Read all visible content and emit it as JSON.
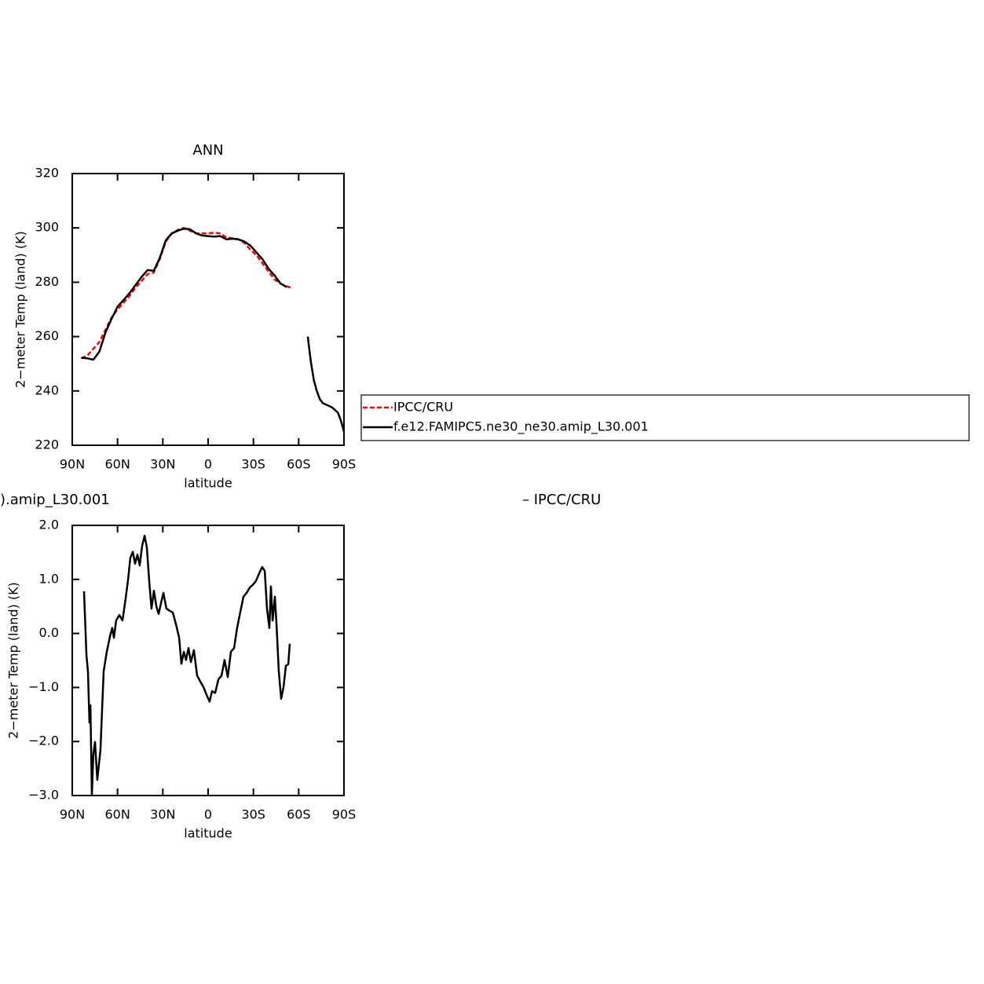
{
  "chart_data": [
    {
      "type": "line",
      "title": "ANN",
      "xlabel": "latitude",
      "ylabel": "2−meter Temp (land) (K)",
      "xlim": [
        90,
        -90
      ],
      "xticks": [
        {
          "value": 90,
          "label": "90N"
        },
        {
          "value": 60,
          "label": "60N"
        },
        {
          "value": 30,
          "label": "30N"
        },
        0,
        {
          "value": -30,
          "label": "30S"
        },
        {
          "value": -60,
          "label": "60S"
        },
        {
          "value": -90,
          "label": "90S"
        }
      ],
      "ylim": [
        220,
        320
      ],
      "yticks": [
        220,
        240,
        260,
        280,
        300,
        320
      ],
      "legend": "right",
      "x": [
        84,
        80,
        76,
        72,
        68,
        64,
        60,
        56,
        52,
        48,
        44,
        40,
        36,
        32,
        28,
        24,
        20,
        16,
        12,
        8,
        4,
        0,
        -4,
        -8,
        -12,
        -16,
        -20,
        -24,
        -28,
        -32,
        -36,
        -40,
        -44,
        -48,
        -52,
        -56,
        -60,
        -64,
        -66,
        -68,
        -70,
        -72,
        -74,
        -76,
        -78,
        -80,
        -82,
        -84,
        -86,
        -88,
        -90
      ],
      "series": [
        {
          "name": "IPCC/CRU",
          "color": "#ff0000",
          "dash": true,
          "values": [
            252,
            253,
            255.5,
            258,
            262.5,
            267,
            270,
            272.5,
            275,
            278,
            280.5,
            283,
            283.5,
            288.5,
            295,
            298,
            299.3,
            300,
            299,
            298,
            298,
            298,
            298.2,
            298,
            296.5,
            296.2,
            295.8,
            294.5,
            292,
            290,
            287,
            284,
            281,
            279.5,
            278.5,
            277.8,
            null,
            null,
            null,
            null,
            null,
            null,
            null,
            null,
            null,
            null,
            null,
            null,
            null,
            null,
            null
          ]
        },
        {
          "name": "f.e12.FAMIPC5.ne30_ne30.amip_L30.001",
          "color": "#000000",
          "dash": false,
          "values": [
            252.2,
            252,
            251.5,
            254.5,
            261.5,
            266.5,
            271,
            273.5,
            276,
            279,
            282,
            284.5,
            284.2,
            289,
            295.5,
            298,
            299,
            299.7,
            299.5,
            298,
            297.2,
            297,
            296.8,
            297,
            295.8,
            296,
            295.8,
            295,
            293.5,
            291,
            288.5,
            285,
            282.5,
            279.5,
            278.2,
            null,
            null,
            null,
            260,
            251,
            244,
            240,
            237,
            235.5,
            235,
            234.5,
            234,
            233,
            232,
            229,
            225
          ]
        }
      ]
    },
    {
      "type": "line",
      "title_left": ").amip_L30.001",
      "title_right": "– IPCC/CRU",
      "xlabel": "latitude",
      "ylabel": "2−meter Temp (land) (K)",
      "xlim": [
        90,
        -90
      ],
      "xticks": [
        {
          "value": 90,
          "label": "90N"
        },
        {
          "value": 60,
          "label": "60N"
        },
        {
          "value": 30,
          "label": "30N"
        },
        0,
        {
          "value": -30,
          "label": "30S"
        },
        {
          "value": -60,
          "label": "60S"
        },
        {
          "value": -90,
          "label": "90S"
        }
      ],
      "ylim": [
        -3,
        2
      ],
      "yticks": [
        {
          "value": -3,
          "label": "−3.0"
        },
        {
          "value": -2,
          "label": "−2.0"
        },
        {
          "value": -1,
          "label": "−1.0"
        },
        {
          "value": 0,
          "label": "0.0"
        },
        {
          "value": 1,
          "label": "1.0"
        },
        {
          "value": 2,
          "label": "2.0"
        }
      ],
      "color": "#000000",
      "x": [
        82.2,
        80.6,
        79.6,
        78.6,
        78,
        77,
        76,
        74.9,
        73.4,
        71.3,
        69.2,
        67.1,
        65,
        63.5,
        62.4,
        60.9,
        58.8,
        56.7,
        54.6,
        53.1,
        51.5,
        49.9,
        48.4,
        46.8,
        45.3,
        43.7,
        42.1,
        40.6,
        39,
        37.5,
        35.9,
        34.3,
        32.8,
        31.2,
        29.6,
        27.6,
        25.5,
        23.4,
        21.3,
        19.2,
        17.7,
        16.1,
        14.6,
        13,
        11.4,
        9.4,
        7.3,
        5.2,
        3.1,
        1,
        -1,
        -2.6,
        -4.7,
        -6.8,
        -8.9,
        -10.9,
        -13,
        -15.1,
        -17.2,
        -19.2,
        -21.3,
        -23.4,
        -25.5,
        -27.6,
        -29.6,
        -31.7,
        -33.8,
        -35.8,
        -37.5,
        -39,
        -40.6,
        -41.6,
        -42.7,
        -44.2,
        -45.3,
        -46.8,
        -48.4,
        -50,
        -51.5,
        -53.1,
        -54.1
      ],
      "values": [
        0.78,
        -0.41,
        -0.7,
        -1.65,
        -1.33,
        -2.99,
        -2.23,
        -2.01,
        -2.71,
        -2.16,
        -0.7,
        -0.34,
        -0.05,
        0.1,
        -0.08,
        0.24,
        0.34,
        0.24,
        0.65,
        0.97,
        1.4,
        1.51,
        1.29,
        1.46,
        1.26,
        1.62,
        1.81,
        1.59,
        0.97,
        0.46,
        0.79,
        0.5,
        0.36,
        0.56,
        0.75,
        0.46,
        0.42,
        0.39,
        0.17,
        -0.08,
        -0.56,
        -0.34,
        -0.49,
        -0.27,
        -0.53,
        -0.31,
        -0.78,
        -0.89,
        -0.99,
        -1.14,
        -1.26,
        -1.07,
        -1.1,
        -0.85,
        -0.78,
        -0.49,
        -0.81,
        -0.34,
        -0.27,
        0.1,
        0.39,
        0.68,
        0.75,
        0.85,
        0.9,
        0.97,
        1.11,
        1.23,
        1.16,
        0.46,
        0.1,
        0.87,
        0.24,
        0.68,
        0.17,
        -0.7,
        -1.21,
        -0.99,
        -0.6,
        -0.57,
        -0.19
      ]
    }
  ]
}
